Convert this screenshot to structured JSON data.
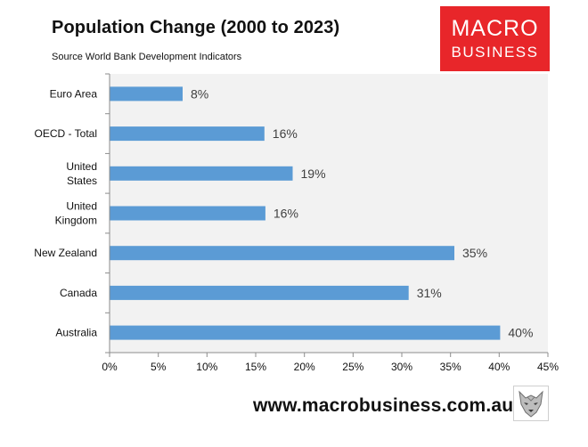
{
  "header": {
    "title": "Population Change (2000 to 2023)",
    "subtitle": "Source World Bank Development Indicators"
  },
  "logo": {
    "line1": "MACRO",
    "line2": "BUSINESS",
    "background": "#e8262a",
    "text_color": "#ffffff"
  },
  "footer": {
    "url": "www.macrobusiness.com.au",
    "mascot_icon": "wolf-head-icon"
  },
  "colors": {
    "bar": "#5b9bd5",
    "plot_background": "#f2f2f2",
    "axis": "#8c8c8c"
  },
  "chart_data": {
    "type": "bar",
    "orientation": "horizontal",
    "categories": [
      "Euro Area",
      "OECD - Total",
      "United States",
      "United Kingdom",
      "New Zealand",
      "Canada",
      "Australia"
    ],
    "category_lines": [
      [
        "Euro Area"
      ],
      [
        "OECD - Total"
      ],
      [
        "United",
        "States"
      ],
      [
        "United",
        "Kingdom"
      ],
      [
        "New Zealand"
      ],
      [
        "Canada"
      ],
      [
        "Australia"
      ]
    ],
    "values": [
      0.075,
      0.159,
      0.188,
      0.16,
      0.354,
      0.307,
      0.401
    ],
    "data_labels": [
      "8%",
      "16%",
      "19%",
      "16%",
      "35%",
      "31%",
      "40%"
    ],
    "xlim": [
      0,
      0.45
    ],
    "xticks": [
      0,
      0.05,
      0.1,
      0.15,
      0.2,
      0.25,
      0.3,
      0.35,
      0.4,
      0.45
    ],
    "xtick_labels": [
      "0%",
      "5%",
      "10%",
      "15%",
      "20%",
      "25%",
      "30%",
      "35%",
      "40%",
      "45%"
    ],
    "grid": false,
    "legend": "none"
  }
}
